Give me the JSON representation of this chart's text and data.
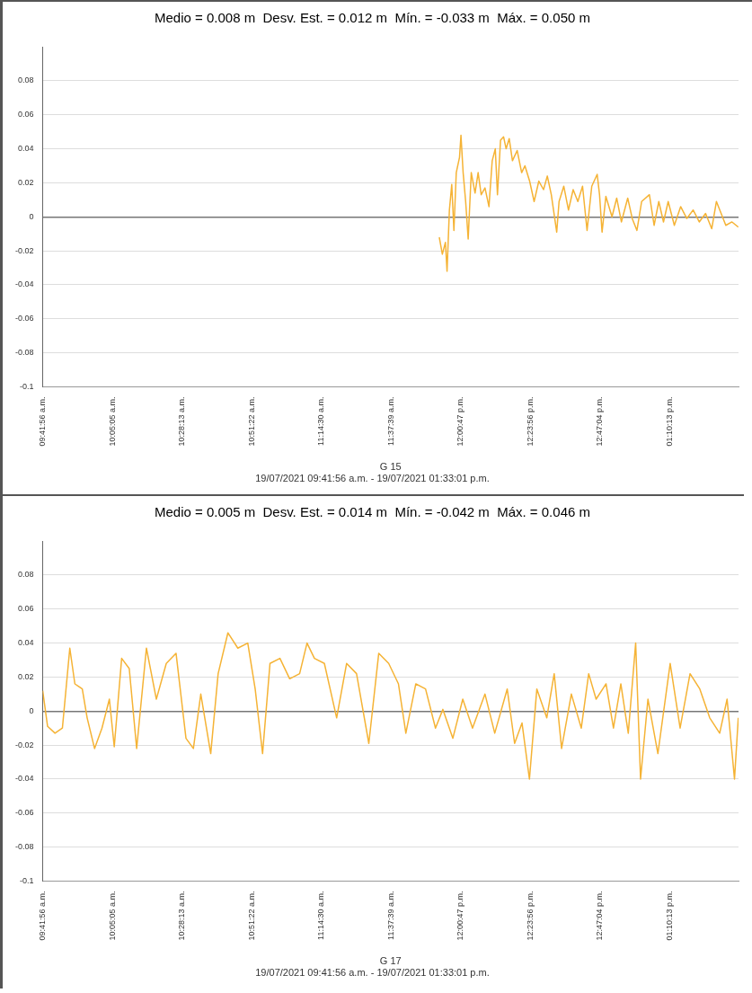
{
  "chart_data": [
    {
      "type": "line",
      "title": "Medio = 0.008 m  Desv. Est. = 0.012 m  Mín. = -0.033 m  Máx. = 0.050 m",
      "xlabel": "G 15",
      "annotations": [
        "19/07/2021 09:41:56 a.m. - 19/07/2021 01:33:01 p.m."
      ],
      "x": [
        11.894,
        11.911,
        11.928,
        11.937,
        11.95,
        11.963,
        11.975,
        11.988,
        12.006,
        12.014,
        12.026,
        12.04,
        12.054,
        12.071,
        12.092,
        12.109,
        12.126,
        12.147,
        12.169,
        12.187,
        12.204,
        12.216,
        12.233,
        12.25,
        12.264,
        12.281,
        12.299,
        12.325,
        12.35,
        12.368,
        12.394,
        12.419,
        12.445,
        12.471,
        12.492,
        12.514,
        12.544,
        12.557,
        12.583,
        12.609,
        12.635,
        12.661,
        12.687,
        12.712,
        12.738,
        12.768,
        12.781,
        12.795,
        12.816,
        12.85,
        12.876,
        12.902,
        12.937,
        12.962,
        12.988,
        13.014,
        13.057,
        13.083,
        13.109,
        13.135,
        13.161,
        13.195,
        13.23,
        13.264,
        13.299,
        13.333,
        13.368,
        13.402,
        13.428,
        13.454,
        13.48,
        13.514,
        13.549
      ],
      "series": [
        {
          "color": "#f5b335",
          "values": [
            -0.012,
            -0.022,
            -0.015,
            -0.032,
            0.004,
            0.019,
            -0.008,
            0.026,
            0.035,
            0.048,
            0.026,
            0.009,
            -0.013,
            0.026,
            0.014,
            0.026,
            0.013,
            0.017,
            0.006,
            0.033,
            0.04,
            0.013,
            0.045,
            0.047,
            0.04,
            0.046,
            0.033,
            0.039,
            0.026,
            0.03,
            0.021,
            0.009,
            0.021,
            0.016,
            0.024,
            0.013,
            -0.009,
            0.009,
            0.018,
            0.004,
            0.016,
            0.009,
            0.018,
            -0.008,
            0.018,
            0.025,
            0.013,
            -0.009,
            0.012,
            0.0,
            0.011,
            -0.003,
            0.011,
            -0.001,
            -0.008,
            0.009,
            0.013,
            -0.005,
            0.009,
            -0.003,
            0.009,
            -0.005,
            0.006,
            -0.001,
            0.004,
            -0.003,
            0.002,
            -0.007,
            0.009,
            0.002,
            -0.005,
            -0.003,
            -0.006
          ]
        }
      ],
      "xlim": [
        9.69889,
        13.55028
      ],
      "xticks": [
        {
          "value": 9.69889,
          "label": "09:41:56 a.m."
        },
        {
          "value": 10.08472,
          "label": "10:05:05 a.m."
        },
        {
          "value": 10.47028,
          "label": "10:28:13 a.m."
        },
        {
          "value": 10.85611,
          "label": "10:51:22 a.m."
        },
        {
          "value": 11.24167,
          "label": "11:14:30 a.m."
        },
        {
          "value": 11.6275,
          "label": "11:37:39 a.m."
        },
        {
          "value": 12.01306,
          "label": "12:00:47 p.m."
        },
        {
          "value": 12.39889,
          "label": "12:23:56 p.m."
        },
        {
          "value": 12.78444,
          "label": "12:47:04 p.m."
        },
        {
          "value": 13.17028,
          "label": "01:10:13 p.m."
        }
      ],
      "ylim": [
        -0.1,
        0.1
      ],
      "yticks": [
        -0.1,
        -0.08,
        -0.06,
        -0.04,
        -0.02,
        0,
        0.02,
        0.04,
        0.06,
        0.08
      ],
      "grid": "y",
      "legend": false,
      "marker": "none",
      "line_style": "solid"
    },
    {
      "type": "line",
      "title": "Medio = 0.005 m  Desv. Est. = 0.014 m  Mín. = -0.042 m  Máx. = 0.046 m",
      "xlabel": "G 17",
      "annotations": [
        "19/07/2021 09:41:56 a.m. - 19/07/2021 01:33:01 p.m."
      ],
      "x": [
        9.699,
        9.726,
        9.767,
        9.808,
        9.849,
        9.877,
        9.918,
        9.945,
        9.986,
        10.027,
        10.068,
        10.095,
        10.136,
        10.178,
        10.219,
        10.273,
        10.328,
        10.383,
        10.437,
        10.492,
        10.533,
        10.574,
        10.629,
        10.67,
        10.724,
        10.779,
        10.834,
        10.875,
        10.916,
        10.957,
        11.012,
        11.066,
        11.121,
        11.162,
        11.203,
        11.258,
        11.326,
        11.381,
        11.436,
        11.504,
        11.559,
        11.614,
        11.668,
        11.709,
        11.764,
        11.818,
        11.873,
        11.914,
        11.969,
        12.024,
        12.078,
        12.147,
        12.201,
        12.27,
        12.311,
        12.352,
        12.393,
        12.434,
        12.489,
        12.53,
        12.571,
        12.625,
        12.68,
        12.721,
        12.762,
        12.817,
        12.858,
        12.899,
        12.94,
        12.981,
        13.008,
        13.049,
        13.104,
        13.172,
        13.227,
        13.282,
        13.336,
        13.391,
        13.446,
        13.487,
        13.528,
        13.549
      ],
      "series": [
        {
          "color": "#f5b335",
          "values": [
            0.012,
            -0.009,
            -0.013,
            -0.01,
            0.037,
            0.016,
            0.013,
            -0.004,
            -0.022,
            -0.01,
            0.007,
            -0.021,
            0.031,
            0.025,
            -0.022,
            0.037,
            0.007,
            0.028,
            0.034,
            -0.016,
            -0.022,
            0.01,
            -0.025,
            0.022,
            0.046,
            0.037,
            0.04,
            0.013,
            -0.025,
            0.028,
            0.031,
            0.019,
            0.022,
            0.04,
            0.031,
            0.028,
            -0.004,
            0.028,
            0.022,
            -0.019,
            0.034,
            0.028,
            0.016,
            -0.013,
            0.016,
            0.013,
            -0.01,
            0.001,
            -0.016,
            0.007,
            -0.01,
            0.01,
            -0.013,
            0.013,
            -0.019,
            -0.007,
            -0.04,
            0.013,
            -0.004,
            0.022,
            -0.022,
            0.01,
            -0.01,
            0.022,
            0.007,
            0.016,
            -0.01,
            0.016,
            -0.013,
            0.04,
            -0.04,
            0.007,
            -0.025,
            0.028,
            -0.01,
            0.022,
            0.013,
            -0.004,
            -0.013,
            0.007,
            -0.04,
            -0.004
          ]
        }
      ],
      "xlim": [
        9.69889,
        13.55028
      ],
      "xticks": [
        {
          "value": 9.69889,
          "label": "09:41:56 a.m."
        },
        {
          "value": 10.08472,
          "label": "10:05:05 a.m."
        },
        {
          "value": 10.47028,
          "label": "10:28:13 a.m."
        },
        {
          "value": 10.85611,
          "label": "10:51:22 a.m."
        },
        {
          "value": 11.24167,
          "label": "11:14:30 a.m."
        },
        {
          "value": 11.6275,
          "label": "11:37:39 a.m."
        },
        {
          "value": 12.01306,
          "label": "12:00:47 p.m."
        },
        {
          "value": 12.39889,
          "label": "12:23:56 p.m."
        },
        {
          "value": 12.78444,
          "label": "12:47:04 p.m."
        },
        {
          "value": 13.17028,
          "label": "01:10:13 p.m."
        }
      ],
      "ylim": [
        -0.1,
        0.1
      ],
      "yticks": [
        -0.1,
        -0.08,
        -0.06,
        -0.04,
        -0.02,
        0,
        0.02,
        0.04,
        0.06,
        0.08
      ],
      "grid": "y",
      "legend": false,
      "marker": "none",
      "line_style": "solid"
    }
  ]
}
